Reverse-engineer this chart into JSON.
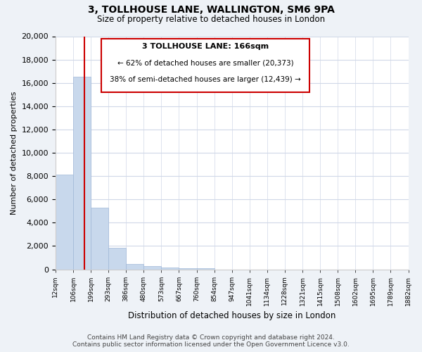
{
  "title": "3, TOLLHOUSE LANE, WALLINGTON, SM6 9PA",
  "subtitle": "Size of property relative to detached houses in London",
  "xlabel": "Distribution of detached houses by size in London",
  "ylabel": "Number of detached properties",
  "bar_values": [
    8100,
    16500,
    5300,
    1850,
    450,
    300,
    150,
    100,
    80,
    0,
    0,
    0,
    0,
    0,
    0,
    0,
    0,
    0,
    0,
    0
  ],
  "bar_labels": [
    "12sqm",
    "106sqm",
    "199sqm",
    "293sqm",
    "386sqm",
    "480sqm",
    "573sqm",
    "667sqm",
    "760sqm",
    "854sqm",
    "947sqm",
    "1041sqm",
    "1134sqm",
    "1228sqm",
    "1321sqm",
    "1415sqm",
    "1508sqm",
    "1602sqm",
    "1695sqm",
    "1789sqm",
    "1882sqm"
  ],
  "bar_color": "#c8d8ec",
  "bar_edge_color": "#a0b8d8",
  "annotation_title": "3 TOLLHOUSE LANE: 166sqm",
  "annotation_line1": "← 62% of detached houses are smaller (20,373)",
  "annotation_line2": "38% of semi-detached houses are larger (12,439) →",
  "ylim": [
    0,
    20000
  ],
  "yticks": [
    0,
    2000,
    4000,
    6000,
    8000,
    10000,
    12000,
    14000,
    16000,
    18000,
    20000
  ],
  "footer_line1": "Contains HM Land Registry data © Crown copyright and database right 2024.",
  "footer_line2": "Contains public sector information licensed under the Open Government Licence v3.0.",
  "bg_color": "#eef2f7",
  "plot_bg_color": "#ffffff",
  "grid_color": "#d0d8e8"
}
